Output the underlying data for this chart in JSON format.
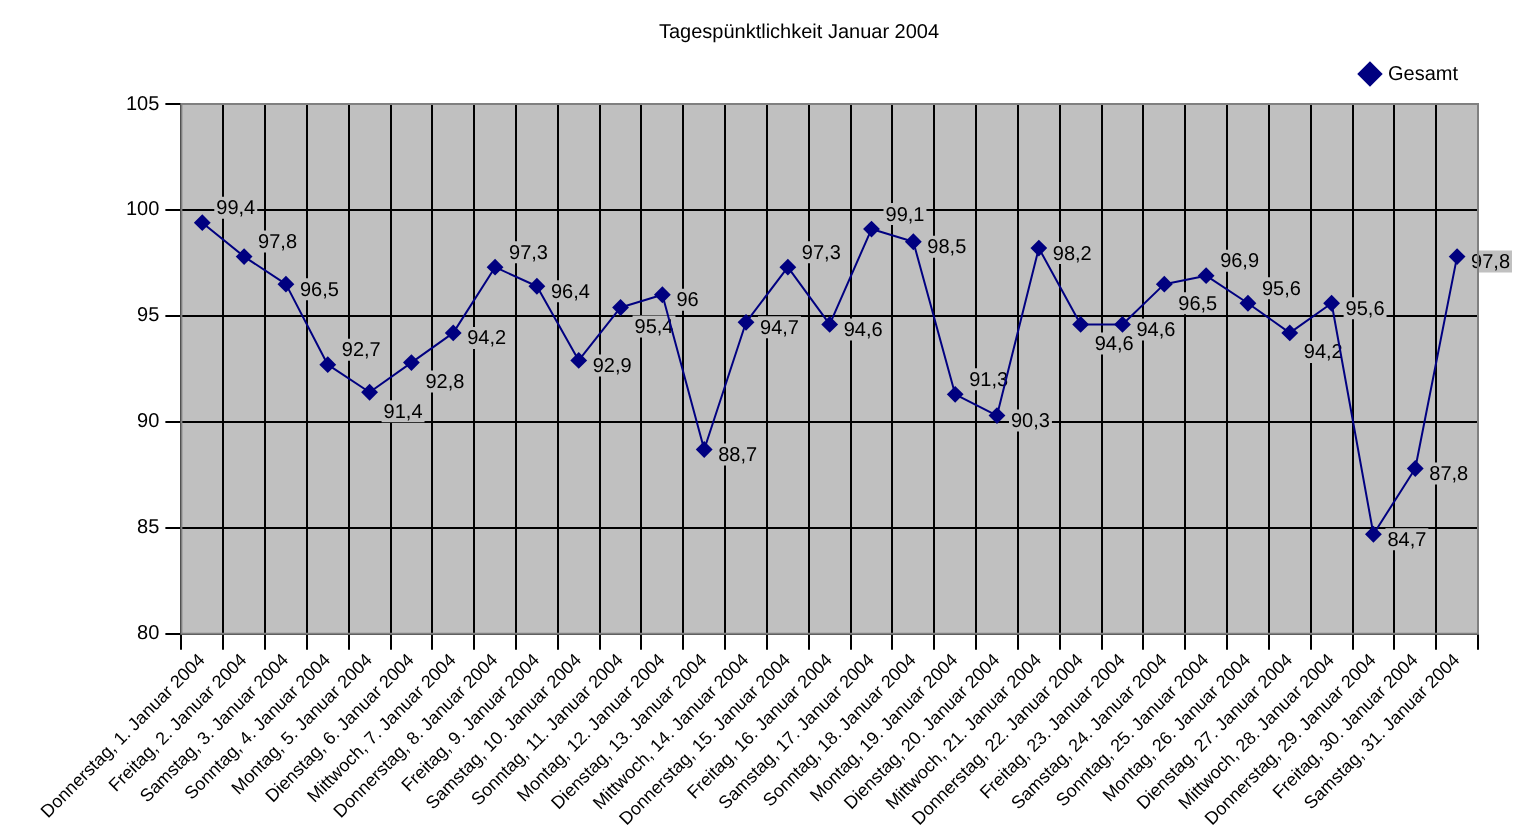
{
  "chart_data": {
    "type": "line",
    "title": "Tagespünktlichkeit Januar 2004",
    "categories": [
      "Donnerstag, 1. Januar 2004",
      "Freitag, 2. Januar 2004",
      "Samstag, 3. Januar 2004",
      "Sonntag, 4. Januar 2004",
      "Montag, 5. Januar 2004",
      "Dienstag, 6. Januar 2004",
      "Mittwoch, 7. Januar 2004",
      "Donnerstag, 8. Januar 2004",
      "Freitag, 9. Januar 2004",
      "Samstag, 10. Januar 2004",
      "Sonntag, 11. Januar 2004",
      "Montag, 12. Januar 2004",
      "Dienstag, 13. Januar 2004",
      "Mittwoch, 14. Januar 2004",
      "Donnerstag, 15. Januar 2004",
      "Freitag, 16. Januar 2004",
      "Samstag, 17. Januar 2004",
      "Sonntag, 18. Januar 2004",
      "Montag, 19. Januar 2004",
      "Dienstag, 20. Januar 2004",
      "Mittwoch, 21. Januar 2004",
      "Donnerstag, 22. Januar 2004",
      "Freitag, 23. Januar 2004",
      "Samstag, 24. Januar 2004",
      "Sonntag, 25. Januar 2004",
      "Montag, 26. Januar 2004",
      "Dienstag, 27. Januar 2004",
      "Mittwoch, 28. Januar 2004",
      "Donnerstag, 29. Januar 2004",
      "Freitag, 30. Januar 2004",
      "Samstag, 31. Januar 2004"
    ],
    "series": [
      {
        "name": "Gesamt",
        "color": "#000080",
        "values": [
          99.4,
          97.8,
          96.5,
          92.7,
          91.4,
          92.8,
          94.2,
          97.3,
          96.4,
          92.9,
          95.4,
          96,
          88.7,
          94.7,
          97.3,
          94.6,
          99.1,
          98.5,
          91.3,
          90.3,
          98.2,
          94.6,
          94.6,
          96.5,
          96.9,
          95.6,
          94.2,
          95.6,
          84.7,
          87.8,
          97.8
        ],
        "value_labels": [
          "99,4",
          "97,8",
          "96,5",
          "92,7",
          "91,4",
          "92,8",
          "94,2",
          "97,3",
          "96,4",
          "92,9",
          "95,4",
          "96",
          "88,7",
          "94,7",
          "97,3",
          "94,6",
          "99,1",
          "98,5",
          "91,3",
          "90,3",
          "98,2",
          "94,6",
          "94,6",
          "96,5",
          "96,9",
          "95,6",
          "94,2",
          "95,6",
          "84,7",
          "87,8",
          "97,8"
        ]
      }
    ],
    "ylim": [
      80,
      105
    ],
    "yticks": [
      80,
      85,
      90,
      95,
      100,
      105
    ],
    "grid": true,
    "legend": "top right",
    "marker": "diamond",
    "line_style": "solid"
  }
}
